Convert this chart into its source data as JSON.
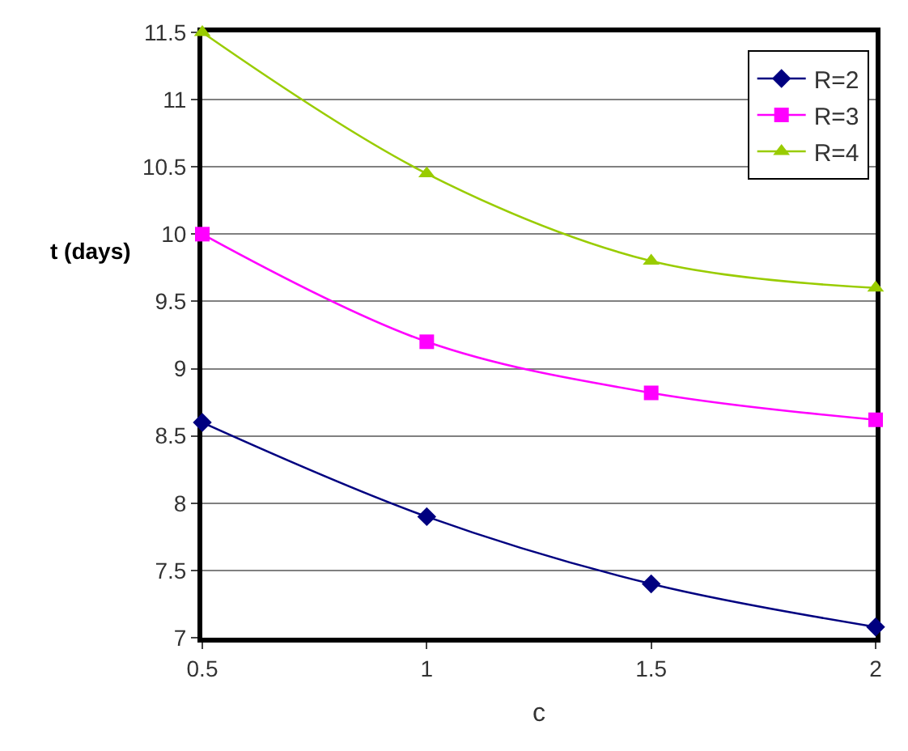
{
  "chart_data": {
    "type": "line",
    "xlabel": "c",
    "ylabel": "t (days)",
    "x": [
      0.5,
      1,
      1.5,
      2
    ],
    "series": [
      {
        "name": "R=2",
        "color": "#000080",
        "marker": "diamond",
        "values": [
          8.6,
          7.9,
          7.4,
          7.08
        ]
      },
      {
        "name": "R=3",
        "color": "#ff00ff",
        "marker": "square",
        "values": [
          10,
          9.2,
          8.82,
          8.62
        ]
      },
      {
        "name": "R=4",
        "color": "#99cc00",
        "marker": "triangle",
        "values": [
          11.5,
          10.45,
          9.8,
          9.6
        ]
      }
    ],
    "xlim": [
      0.5,
      2
    ],
    "xticks": [
      0.5,
      1,
      1.5,
      2
    ],
    "ylim": [
      7,
      11.5
    ],
    "yticks": [
      7,
      7.5,
      8,
      8.5,
      9,
      9.5,
      10,
      10.5,
      11,
      11.5
    ],
    "grid": "y",
    "legend": "top right",
    "line_style": "solid"
  }
}
